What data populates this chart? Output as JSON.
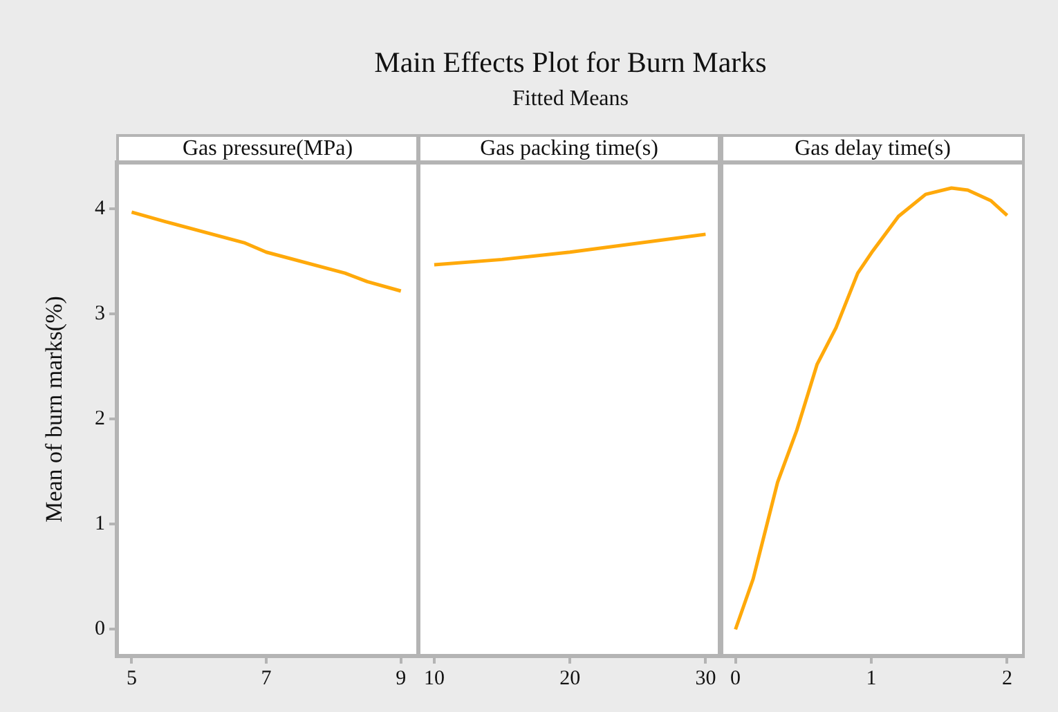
{
  "chart_data": [
    {
      "type": "line",
      "xlabel": "Gas pressure(MPa)",
      "ylabel": "Mean of burn marks(%)",
      "color": "#ffa90a",
      "x": [
        5,
        5.5,
        6.67,
        7,
        8.17,
        8.5,
        9
      ],
      "values": [
        3.97,
        3.88,
        3.68,
        3.59,
        3.39,
        3.31,
        3.22
      ],
      "xlim": [
        4.77,
        9.27
      ],
      "xticks": [
        5,
        7,
        9
      ],
      "ylim": [
        -0.26,
        4.45
      ],
      "yticks": [
        0,
        1,
        2,
        3,
        4
      ]
    },
    {
      "type": "line",
      "title": "Main Effects Plot for Burn Marks",
      "subtitle": "Fitted Means",
      "xlabel": "Gas packing time(s)",
      "color": "#ffa90a",
      "x": [
        10,
        15,
        20,
        30
      ],
      "values": [
        3.47,
        3.52,
        3.59,
        3.76
      ],
      "xlim": [
        8.78,
        31.1
      ],
      "xticks": [
        10,
        20,
        30
      ],
      "ylim": [
        -0.26,
        4.45
      ],
      "yticks": [
        0,
        1,
        2,
        3,
        4
      ],
      "tick_labels": "x"
    },
    {
      "type": "line",
      "xlabel": "Gas delay time(s)",
      "color": "#ffa90a",
      "x": [
        0,
        0.13,
        0.31,
        0.45,
        0.6,
        0.74,
        0.9,
        1.01,
        1.2,
        1.4,
        1.59,
        1.71,
        1.88,
        2
      ],
      "values": [
        0,
        0.48,
        1.4,
        1.89,
        2.52,
        2.87,
        3.39,
        3.6,
        3.93,
        4.14,
        4.2,
        4.18,
        4.08,
        3.94
      ],
      "xlim": [
        -0.11,
        2.13
      ],
      "xticks": [
        0,
        1,
        2
      ],
      "ylim": [
        -0.26,
        4.45
      ],
      "yticks": [
        0,
        1,
        2,
        3,
        4
      ],
      "tick_labels": "x"
    }
  ]
}
